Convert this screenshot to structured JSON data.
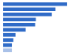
{
  "chart_data": {
    "type": "bar",
    "orientation": "horizontal",
    "categories": [
      null,
      null,
      null,
      null,
      null,
      null,
      null,
      null,
      null,
      null
    ],
    "values": [
      88,
      72,
      67,
      45,
      44,
      31,
      17,
      14,
      12,
      12
    ],
    "colors": [
      "#2f6bc7",
      "#2f6bc7",
      "#2f6bc7",
      "#2f6bc7",
      "#2f6bc7",
      "#2f6bc7",
      "#2f6bc7",
      "#2f6bc7",
      "#2f6bc7",
      "#a9c1e8"
    ],
    "xlim": [
      0,
      100
    ],
    "xticks": [
      0,
      100
    ],
    "grid": false,
    "tick_labels": false
  }
}
